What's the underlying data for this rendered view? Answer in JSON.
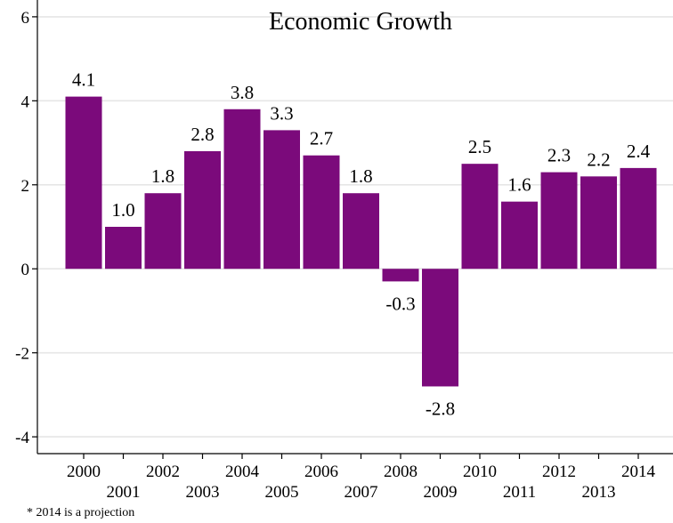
{
  "chart_data": {
    "type": "bar",
    "title": "Economic Growth",
    "categories": [
      "2000",
      "2001",
      "2002",
      "2003",
      "2004",
      "2005",
      "2006",
      "2007",
      "2008",
      "2009",
      "2010",
      "2011",
      "2012",
      "2013",
      "2014"
    ],
    "values": [
      4.1,
      1.0,
      1.8,
      2.8,
      3.8,
      3.3,
      2.7,
      1.8,
      -0.3,
      -2.8,
      2.5,
      1.6,
      2.3,
      2.2,
      2.4
    ],
    "data_labels": [
      "4.1",
      "1.0",
      "1.8",
      "2.8",
      "3.8",
      "3.3",
      "2.7",
      "1.8",
      "-0.3",
      "-2.8",
      "2.5",
      "1.6",
      "2.3",
      "2.2",
      "2.4"
    ],
    "y_ticks": [
      -4,
      -2,
      0,
      2,
      4,
      6
    ],
    "ylim": [
      -4.4,
      6.4
    ],
    "xlabel": "",
    "ylabel": "",
    "grid": true,
    "legend": "none",
    "bar_color": "#7b0a7b",
    "gridline_color": "#e6e6e6"
  },
  "footnote": "* 2014 is a projection"
}
